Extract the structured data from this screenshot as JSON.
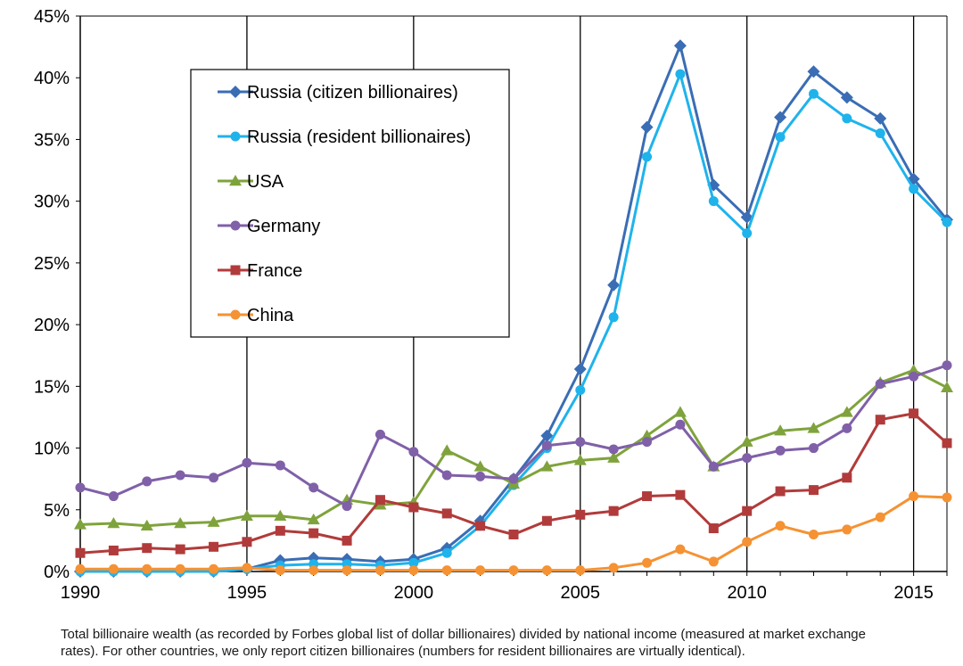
{
  "chart_data": {
    "type": "line",
    "title": "",
    "xlabel": "",
    "ylabel": "",
    "xlim": [
      1990,
      2016
    ],
    "ylim": [
      0,
      45
    ],
    "x_ticks": [
      "1990",
      "1995",
      "2000",
      "2005",
      "2010",
      "2015"
    ],
    "y_ticks": [
      "0%",
      "5%",
      "10%",
      "15%",
      "20%",
      "25%",
      "30%",
      "35%",
      "40%",
      "45%"
    ],
    "grid": "vertical lines at each x tick",
    "legend_position": "upper-left",
    "x": [
      1990,
      1991,
      1992,
      1993,
      1994,
      1995,
      1996,
      1997,
      1998,
      1999,
      2000,
      2001,
      2002,
      2003,
      2004,
      2005,
      2006,
      2007,
      2008,
      2009,
      2010,
      2011,
      2012,
      2013,
      2014,
      2015,
      2016
    ],
    "series": [
      {
        "name": "Russia (citizen billionaires)",
        "color": "#3a6db4",
        "marker": "diamond",
        "values": [
          0,
          0,
          0,
          0,
          0,
          0.2,
          0.9,
          1.1,
          1.0,
          0.8,
          1.0,
          1.9,
          4.1,
          7.5,
          11.0,
          16.4,
          23.2,
          36.0,
          42.6,
          31.3,
          28.7,
          36.8,
          40.5,
          38.4,
          36.7,
          31.8,
          28.5
        ]
      },
      {
        "name": "Russia (resident billionaires)",
        "color": "#1fb3ec",
        "marker": "circle",
        "values": [
          0,
          0,
          0,
          0,
          0,
          0.2,
          0.5,
          0.6,
          0.6,
          0.5,
          0.7,
          1.5,
          3.7,
          7.0,
          10.0,
          14.7,
          20.6,
          33.6,
          40.3,
          30.0,
          27.4,
          35.2,
          38.7,
          36.7,
          35.5,
          31.0,
          28.3
        ]
      },
      {
        "name": "USA",
        "color": "#7fa33c",
        "marker": "triangle",
        "values": [
          3.8,
          3.9,
          3.7,
          3.9,
          4.0,
          4.5,
          4.5,
          4.2,
          5.8,
          5.4,
          5.6,
          9.8,
          8.5,
          7.1,
          8.5,
          9.0,
          9.2,
          11.0,
          12.9,
          8.5,
          10.5,
          11.4,
          11.6,
          12.9,
          15.3,
          16.3,
          14.9
        ]
      },
      {
        "name": "Germany",
        "color": "#8060a8",
        "marker": "circle",
        "values": [
          6.8,
          6.1,
          7.3,
          7.8,
          7.6,
          8.8,
          8.6,
          6.8,
          5.3,
          11.1,
          9.7,
          7.8,
          7.7,
          7.5,
          10.2,
          10.5,
          9.9,
          10.5,
          11.9,
          8.5,
          9.2,
          9.8,
          10.0,
          11.6,
          15.2,
          15.8,
          16.7
        ]
      },
      {
        "name": "France",
        "color": "#b13b3b",
        "marker": "square",
        "values": [
          1.5,
          1.7,
          1.9,
          1.8,
          2.0,
          2.4,
          3.3,
          3.1,
          2.5,
          5.8,
          5.2,
          4.7,
          3.7,
          3.0,
          4.1,
          4.6,
          4.9,
          6.1,
          6.2,
          3.5,
          4.9,
          6.5,
          6.6,
          7.6,
          12.3,
          12.8,
          10.4
        ]
      },
      {
        "name": "China",
        "color": "#f59233",
        "marker": "circle",
        "values": [
          0.2,
          0.2,
          0.2,
          0.2,
          0.2,
          0.3,
          0.1,
          0.1,
          0.1,
          0.1,
          0.1,
          0.1,
          0.1,
          0.1,
          0.1,
          0.1,
          0.3,
          0.7,
          1.8,
          0.8,
          2.4,
          3.7,
          3.0,
          3.4,
          4.4,
          6.1,
          6.0
        ]
      }
    ]
  },
  "caption": {
    "line1": "Total billionaire wealth (as recorded by Forbes global list of dollar billionaires) divided by national income (measured at market exchange",
    "line2": "rates). For other countries, we only report citizen billionaires (numbers for resident billionaires are virtually identical)."
  }
}
